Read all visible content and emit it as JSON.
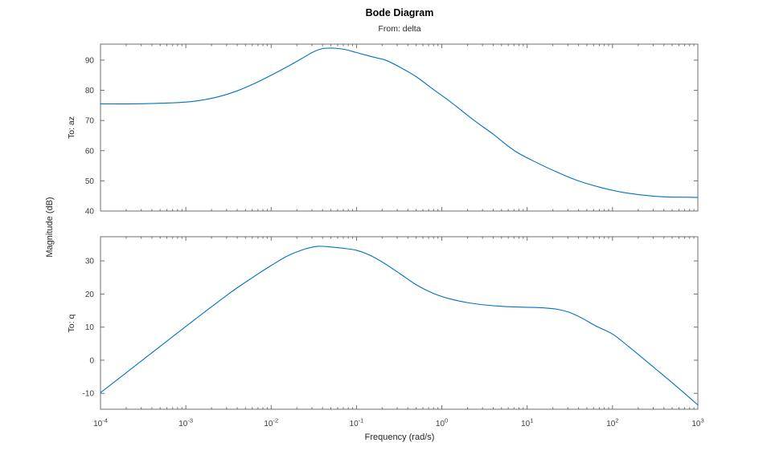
{
  "chart_data": {
    "type": "line",
    "title": "Bode Diagram",
    "subtitle": "From: delta",
    "xlabel": "Frequency (rad/s)",
    "ylabel": "Magnitude (dB)",
    "x_scale": "log",
    "xlim_log10": [
      -4,
      3
    ],
    "x_major_ticks_log10": [
      -4,
      -3,
      -2,
      -1,
      0,
      1,
      2,
      3
    ],
    "grid": false,
    "legend": "none",
    "colors": {
      "line": "#0072BD",
      "axes": "#6f6f6f",
      "tick_text": "#3c3c3c",
      "background": "#ffffff"
    },
    "subplots": [
      {
        "output_label": "To: az",
        "ylim": [
          40,
          95.3
        ],
        "yticks": [
          40,
          50,
          60,
          70,
          80,
          90
        ],
        "series": {
          "name": "delta to az magnitude",
          "log10_freq": [
            -4.0,
            -3.6,
            -3.2,
            -3.0,
            -2.8,
            -2.6,
            -2.4,
            -2.2,
            -2.0,
            -1.8,
            -1.6,
            -1.5,
            -1.4,
            -1.3,
            -1.2,
            -1.1,
            -1.0,
            -0.8,
            -0.66,
            -0.5,
            -0.3,
            -0.1,
            0.1,
            0.38,
            0.6,
            0.85,
            1.1,
            1.35,
            1.6,
            1.85,
            2.1,
            2.35,
            2.6,
            2.8,
            3.0
          ],
          "mag_db": [
            75.5,
            75.5,
            75.8,
            76.1,
            76.8,
            78.0,
            79.8,
            82.2,
            85.0,
            88.0,
            91.2,
            92.8,
            93.8,
            94.0,
            93.8,
            93.3,
            92.5,
            91.0,
            90.0,
            87.8,
            84.5,
            80.3,
            76.2,
            70.0,
            65.5,
            60.0,
            56.2,
            52.9,
            50.0,
            47.9,
            46.3,
            45.3,
            44.7,
            44.6,
            44.5
          ]
        }
      },
      {
        "output_label": "To: q",
        "ylim": [
          -14.8,
          37.3
        ],
        "yticks": [
          -10,
          0,
          10,
          20,
          30
        ],
        "series": {
          "name": "delta to q magnitude",
          "log10_freq": [
            -4.0,
            -3.5,
            -3.0,
            -2.5,
            -2.2,
            -2.0,
            -1.8,
            -1.6,
            -1.45,
            -1.3,
            -1.15,
            -1.0,
            -0.85,
            -0.7,
            -0.5,
            -0.3,
            -0.1,
            0.1,
            0.3,
            0.5,
            0.75,
            1.0,
            1.2,
            1.35,
            1.5,
            1.65,
            1.8,
            2.0,
            2.2,
            2.5,
            2.75,
            3.0
          ],
          "mag_db": [
            -9.8,
            0.2,
            10.2,
            20.0,
            25.3,
            28.6,
            31.6,
            33.6,
            34.4,
            34.2,
            33.8,
            33.2,
            31.8,
            29.7,
            26.3,
            22.8,
            20.2,
            18.5,
            17.4,
            16.7,
            16.2,
            16.0,
            15.8,
            15.4,
            14.4,
            12.6,
            10.4,
            7.9,
            3.9,
            -2.5,
            -7.9,
            -13.5
          ]
        }
      }
    ]
  }
}
